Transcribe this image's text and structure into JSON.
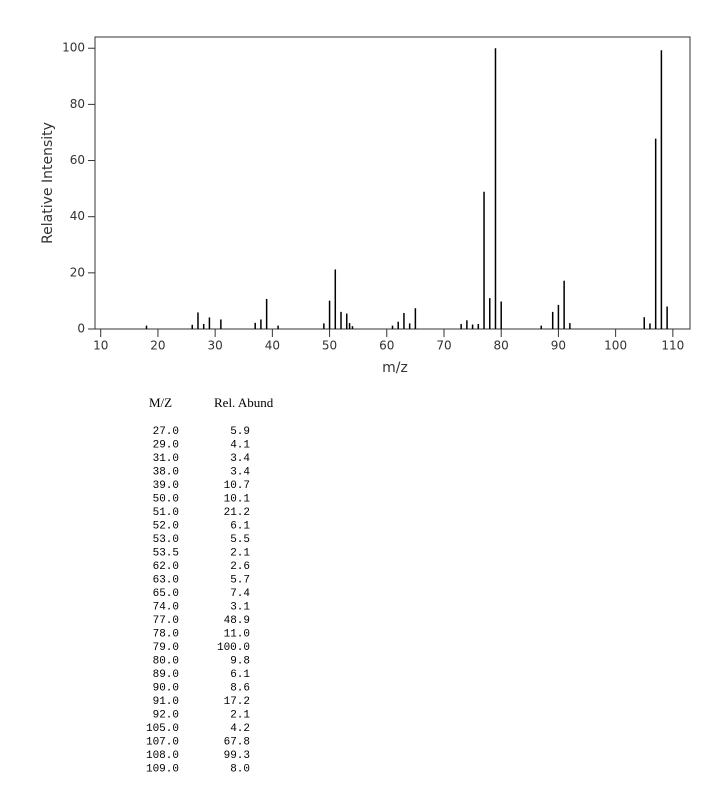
{
  "chart_data": {
    "type": "stem",
    "xlabel": "m/z",
    "ylabel": "Relative Intensity",
    "x": [
      18,
      26,
      27,
      28,
      29,
      31,
      37,
      38,
      39,
      41,
      49,
      50,
      51,
      52,
      53,
      53.5,
      54,
      61,
      62,
      63,
      64,
      65,
      73,
      74,
      75,
      76,
      77,
      78,
      79,
      80,
      87,
      89,
      90,
      91,
      92,
      105,
      106,
      107,
      108,
      109
    ],
    "values": [
      1.2,
      1.5,
      5.9,
      1.8,
      4.1,
      3.4,
      2.2,
      3.4,
      10.7,
      1.2,
      2.0,
      10.1,
      21.2,
      6.1,
      5.5,
      2.1,
      1.0,
      1.2,
      2.6,
      5.7,
      2.0,
      7.4,
      1.8,
      3.1,
      1.6,
      1.8,
      48.9,
      11.0,
      100.0,
      9.8,
      1.2,
      6.1,
      8.6,
      17.2,
      2.1,
      4.2,
      2.0,
      67.8,
      99.3,
      8.0
    ],
    "color": "#000000",
    "xlim": [
      9,
      113
    ],
    "ylim": [
      0,
      104
    ],
    "xticks": [
      10,
      20,
      30,
      40,
      50,
      60,
      70,
      80,
      90,
      100,
      110
    ],
    "yticks": [
      0,
      20,
      40,
      60,
      80,
      100
    ]
  },
  "table": {
    "columns": [
      "M/Z",
      "Rel. Abund"
    ],
    "rows": [
      [
        "27.0",
        "5.9"
      ],
      [
        "29.0",
        "4.1"
      ],
      [
        "31.0",
        "3.4"
      ],
      [
        "38.0",
        "3.4"
      ],
      [
        "39.0",
        "10.7"
      ],
      [
        "50.0",
        "10.1"
      ],
      [
        "51.0",
        "21.2"
      ],
      [
        "52.0",
        "6.1"
      ],
      [
        "53.0",
        "5.5"
      ],
      [
        "53.5",
        "2.1"
      ],
      [
        "62.0",
        "2.6"
      ],
      [
        "63.0",
        "5.7"
      ],
      [
        "65.0",
        "7.4"
      ],
      [
        "74.0",
        "3.1"
      ],
      [
        "77.0",
        "48.9"
      ],
      [
        "78.0",
        "11.0"
      ],
      [
        "79.0",
        "100.0"
      ],
      [
        "80.0",
        "9.8"
      ],
      [
        "89.0",
        "6.1"
      ],
      [
        "90.0",
        "8.6"
      ],
      [
        "91.0",
        "17.2"
      ],
      [
        "92.0",
        "2.1"
      ],
      [
        "105.0",
        "4.2"
      ],
      [
        "107.0",
        "67.8"
      ],
      [
        "108.0",
        "99.3"
      ],
      [
        "109.0",
        "8.0"
      ]
    ]
  }
}
